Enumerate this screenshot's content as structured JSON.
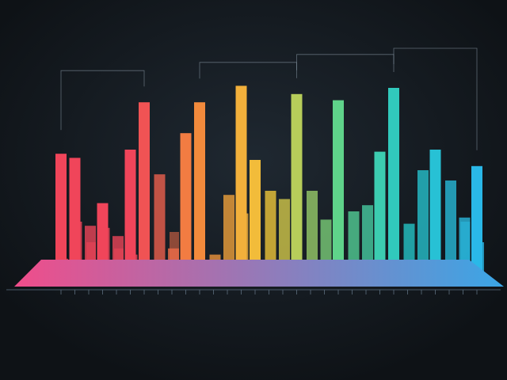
{
  "chart_data": {
    "type": "bar",
    "title": "",
    "xlabel": "",
    "ylabel": "",
    "grid": false,
    "legend": "none",
    "ylim": [
      0,
      100
    ],
    "palette": {
      "red": "#f0455a",
      "orange": "#f28a3c",
      "yellow": "#f2c93a",
      "green": "#5fd38a",
      "teal": "#25c7c9",
      "blue": "#2ab8e8",
      "platform_start": "#f04d8a",
      "platform_end": "#3aa6e6",
      "background": "#12171c"
    },
    "series": [
      {
        "name": "",
        "values": [
          58,
          56,
          0,
          34,
          0,
          60,
          83,
          0,
          0,
          68,
          83,
          0,
          0,
          91,
          55,
          0,
          0,
          87,
          0,
          0,
          84,
          0,
          0,
          59,
          90,
          0,
          0,
          60,
          0,
          0,
          52
        ]
      },
      {
        "name": "",
        "values": [
          7,
          25,
          23,
          22,
          18,
          9,
          0,
          48,
          12,
          0,
          0,
          9,
          38,
          29,
          0,
          40,
          36,
          0,
          40,
          26,
          0,
          30,
          33,
          0,
          0,
          24,
          50,
          0,
          45,
          27,
          15
        ]
      },
      {
        "name": "",
        "values": [
          0,
          0,
          15,
          0,
          12,
          0,
          0,
          0,
          20,
          0,
          0,
          5,
          0,
          0,
          0,
          0,
          0,
          0,
          0,
          0,
          0,
          0,
          0,
          0,
          0,
          0,
          0,
          0,
          0,
          25,
          0
        ]
      }
    ]
  }
}
